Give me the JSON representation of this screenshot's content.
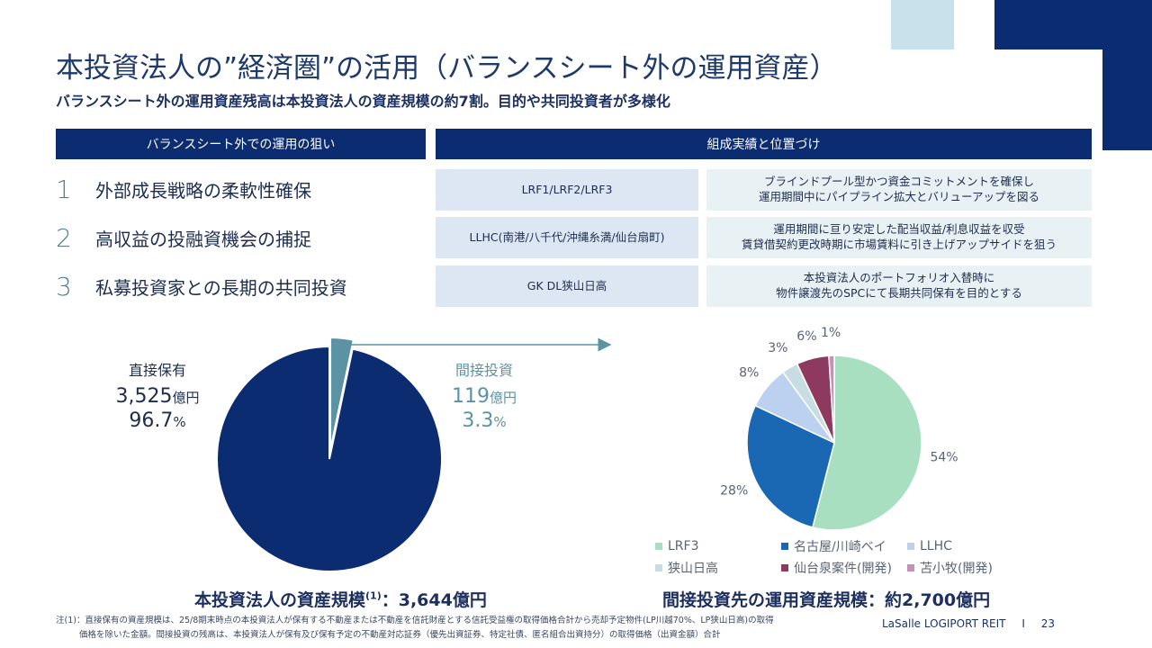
{
  "title": "本投資法人の”経済圏”の活用（バランスシート外の運用資産）",
  "subtitle": "バランスシート外の運用資産残高は本投資法人の資産規模の約7割。目的や共同投資者が多様化",
  "table": {
    "left_header": "バランスシート外での運用の狙い",
    "right_header": "組成実績と位置づけ",
    "rows": [
      {
        "num": "1",
        "aim": "外部成長戦略の柔軟性確保",
        "fund": "LRF1/LRF2/LRF3",
        "desc1": "ブラインドプール型かつ資金コミットメントを確保し",
        "desc2": "運用期間中にパイプライン拡大とバリューアップを図る"
      },
      {
        "num": "2",
        "aim": "高収益の投融資機会の捕捉",
        "fund": "LLHC(南港/八千代/沖縄糸満/仙台扇町)",
        "desc1": "運用期間に亘り安定した配当収益/利息収益を収受",
        "desc2": "賃貸借契約更改時期に市場賃料に引き上げアップサイドを狙う"
      },
      {
        "num": "3",
        "aim": "私募投資家との長期の共同投資",
        "fund": "GK DL狭山日高",
        "desc1": "本投資法人のポートフォリオ入替時に",
        "desc2": "物件譲渡先のSPCにて長期共同保有を目的とする"
      }
    ]
  },
  "left_pie": {
    "direct_label": "直接保有",
    "direct_amount": "3,525",
    "direct_unit": "億円",
    "direct_pct": "96.7",
    "pct_unit": "%",
    "indirect_label": "間接投資",
    "indirect_amount": "119",
    "indirect_unit": "億円",
    "indirect_pct": "3.3",
    "caption_main": "本投資法人の資産規模",
    "caption_sup": "(1)",
    "caption_value": "：3,644億円"
  },
  "right_caption": "間接投資先の運用資産規模：約2,700億円",
  "chart_data": [
    {
      "type": "pie",
      "title": "本投資法人の資産規模",
      "categories": [
        "直接保有",
        "間接投資"
      ],
      "values": [
        96.7,
        3.3
      ],
      "amounts_oku_yen": [
        3525,
        119
      ],
      "colors": [
        "#0c2c72",
        "#5b93a4"
      ]
    },
    {
      "type": "pie",
      "title": "間接投資先の運用資産規模",
      "categories": [
        "LRF3",
        "名古屋/川崎ベイ",
        "LLHC",
        "狭山日高",
        "仙台泉案件(開発)",
        "苫小牧(開発)"
      ],
      "values": [
        54,
        28,
        8,
        3,
        6,
        1
      ],
      "labels": [
        "54%",
        "28%",
        "8%",
        "3%",
        "6%",
        "1%"
      ],
      "colors": [
        "#a8dfc1",
        "#1a68b3",
        "#bcd0f0",
        "#c8dde3",
        "#8e3a5e",
        "#c791b4"
      ]
    }
  ],
  "note_line1": "注(1)：直接保有の資産規模は、25/8期末時点の本投資法人が保有する不動産または不動産を信託財産とする信託受益権の取得価格合計から売却予定物件(LP川越70%、LP狭山日高)の取得",
  "note_line2": "価格を除いた金額。間接投資の残高は、本投資法人が保有及び保有予定の不動産対応証券（優先出資証券、特定社債、匿名組合出資持分）の取得価格（出資金額）合計",
  "footer_brand": "LaSalle LOGIPORT REIT",
  "footer_sep": "I",
  "page_number": "23"
}
